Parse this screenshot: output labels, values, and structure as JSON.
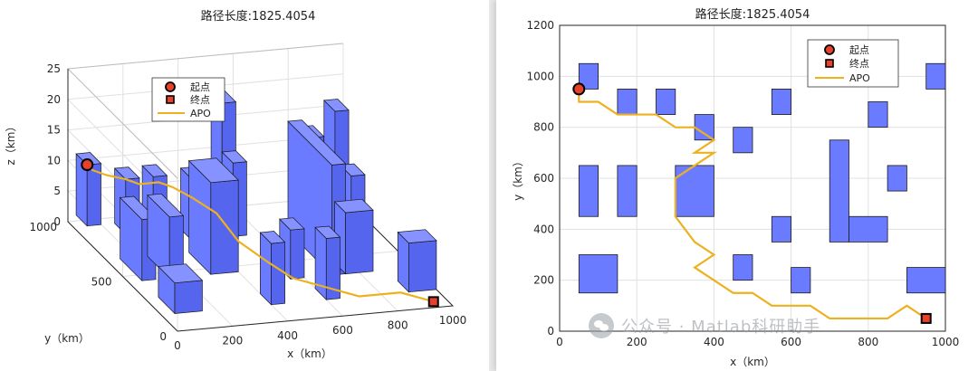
{
  "chart_data": [
    {
      "type": "3d-bar-path",
      "title": "路径长度:1825.4054",
      "xlabel": "x（km）",
      "ylabel": "y（km）",
      "zlabel": "z（km）",
      "xlim": [
        0,
        1000
      ],
      "ylim": [
        0,
        1000
      ],
      "zlim": [
        0,
        25
      ],
      "xticks": [
        "0",
        "200",
        "400",
        "600",
        "800",
        "1000"
      ],
      "yticks": [
        "0",
        "500",
        "1000"
      ],
      "zticks": [
        "0",
        "5",
        "10",
        "15",
        "20",
        "25"
      ],
      "grid": true,
      "legend": {
        "position": "top-left",
        "entries": [
          "起点",
          "终点",
          "APO"
        ]
      },
      "obstacles": [
        {
          "x0": 50,
          "x1": 100,
          "y0": 950,
          "y1": 1050,
          "h": 10
        },
        {
          "x0": 150,
          "x1": 200,
          "y0": 850,
          "y1": 950,
          "h": 9
        },
        {
          "x0": 250,
          "x1": 300,
          "y0": 850,
          "y1": 950,
          "h": 9
        },
        {
          "x0": 350,
          "x1": 400,
          "y0": 750,
          "y1": 850,
          "h": 10
        },
        {
          "x0": 500,
          "x1": 550,
          "y0": 850,
          "y1": 950,
          "h": 20
        },
        {
          "x0": 500,
          "x1": 550,
          "y0": 750,
          "y1": 850,
          "h": 12
        },
        {
          "x0": 800,
          "x1": 850,
          "y0": 800,
          "y1": 900,
          "h": 14
        },
        {
          "x0": 950,
          "x1": 1000,
          "y0": 950,
          "y1": 1050,
          "h": 15
        },
        {
          "x0": 50,
          "x1": 100,
          "y0": 450,
          "y1": 650,
          "h": 10
        },
        {
          "x0": 150,
          "x1": 200,
          "y0": 450,
          "y1": 650,
          "h": 10
        },
        {
          "x0": 300,
          "x1": 400,
          "y0": 450,
          "y1": 650,
          "h": 15
        },
        {
          "x0": 700,
          "x1": 750,
          "y0": 350,
          "y1": 750,
          "h": 18
        },
        {
          "x0": 850,
          "x1": 900,
          "y0": 550,
          "y1": 650,
          "h": 12
        },
        {
          "x0": 550,
          "x1": 600,
          "y0": 350,
          "y1": 450,
          "h": 8
        },
        {
          "x0": 750,
          "x1": 850,
          "y0": 350,
          "y1": 450,
          "h": 10
        },
        {
          "x0": 50,
          "x1": 150,
          "y0": 150,
          "y1": 300,
          "h": 5
        },
        {
          "x0": 400,
          "x1": 450,
          "y0": 150,
          "y1": 250,
          "h": 10
        },
        {
          "x0": 600,
          "x1": 650,
          "y0": 150,
          "y1": 250,
          "h": 10
        },
        {
          "x0": 900,
          "x1": 1000,
          "y0": 150,
          "y1": 250,
          "h": 8
        }
      ],
      "start": {
        "x": 50,
        "y": 950,
        "z": 10
      },
      "goal": {
        "x": 950,
        "y": 50,
        "z": 0
      },
      "path": [
        {
          "x": 50,
          "y": 950,
          "z": 10
        },
        {
          "x": 50,
          "y": 900,
          "z": 10
        },
        {
          "x": 100,
          "y": 900,
          "z": 9
        },
        {
          "x": 150,
          "y": 850,
          "z": 9
        },
        {
          "x": 200,
          "y": 850,
          "z": 8
        },
        {
          "x": 250,
          "y": 800,
          "z": 9
        },
        {
          "x": 300,
          "y": 800,
          "z": 8
        },
        {
          "x": 350,
          "y": 750,
          "z": 7
        },
        {
          "x": 400,
          "y": 650,
          "z": 6
        },
        {
          "x": 400,
          "y": 450,
          "z": 5
        },
        {
          "x": 450,
          "y": 300,
          "z": 4
        },
        {
          "x": 500,
          "y": 200,
          "z": 3
        },
        {
          "x": 600,
          "y": 150,
          "z": 2
        },
        {
          "x": 700,
          "y": 100,
          "z": 1
        },
        {
          "x": 850,
          "y": 100,
          "z": 1
        },
        {
          "x": 950,
          "y": 50,
          "z": 0
        }
      ]
    },
    {
      "type": "2d-obstacle-path",
      "title": "路径长度:1825.4054",
      "xlabel": "x（km）",
      "ylabel": "y（km）",
      "xlim": [
        0,
        1000
      ],
      "ylim": [
        0,
        1200
      ],
      "xticks": [
        "0",
        "200",
        "400",
        "600",
        "800",
        "1000"
      ],
      "yticks": [
        "0",
        "200",
        "400",
        "600",
        "800",
        "1000",
        "1200"
      ],
      "grid": true,
      "legend": {
        "position": "top-right",
        "entries": [
          "起点",
          "终点",
          "APO"
        ]
      },
      "obstacles": [
        {
          "x0": 50,
          "x1": 100,
          "y0": 950,
          "y1": 1050
        },
        {
          "x0": 150,
          "x1": 200,
          "y0": 850,
          "y1": 950
        },
        {
          "x0": 250,
          "x1": 300,
          "y0": 850,
          "y1": 950
        },
        {
          "x0": 350,
          "x1": 400,
          "y0": 750,
          "y1": 850
        },
        {
          "x0": 450,
          "x1": 500,
          "y0": 700,
          "y1": 800
        },
        {
          "x0": 550,
          "x1": 600,
          "y0": 850,
          "y1": 950
        },
        {
          "x0": 800,
          "x1": 850,
          "y0": 800,
          "y1": 900
        },
        {
          "x0": 950,
          "x1": 1000,
          "y0": 950,
          "y1": 1050
        },
        {
          "x0": 50,
          "x1": 100,
          "y0": 450,
          "y1": 650
        },
        {
          "x0": 150,
          "x1": 200,
          "y0": 450,
          "y1": 650
        },
        {
          "x0": 300,
          "x1": 400,
          "y0": 450,
          "y1": 650
        },
        {
          "x0": 700,
          "x1": 750,
          "y0": 350,
          "y1": 750
        },
        {
          "x0": 850,
          "x1": 900,
          "y0": 550,
          "y1": 650
        },
        {
          "x0": 550,
          "x1": 600,
          "y0": 350,
          "y1": 450
        },
        {
          "x0": 750,
          "x1": 850,
          "y0": 350,
          "y1": 450
        },
        {
          "x0": 50,
          "x1": 150,
          "y0": 150,
          "y1": 300
        },
        {
          "x0": 450,
          "x1": 500,
          "y0": 200,
          "y1": 300
        },
        {
          "x0": 600,
          "x1": 650,
          "y0": 150,
          "y1": 250
        },
        {
          "x0": 900,
          "x1": 1000,
          "y0": 150,
          "y1": 250
        }
      ],
      "start": {
        "x": 50,
        "y": 950
      },
      "goal": {
        "x": 950,
        "y": 50
      },
      "path": [
        {
          "x": 50,
          "y": 950
        },
        {
          "x": 50,
          "y": 900
        },
        {
          "x": 100,
          "y": 900
        },
        {
          "x": 150,
          "y": 850
        },
        {
          "x": 250,
          "y": 850
        },
        {
          "x": 300,
          "y": 800
        },
        {
          "x": 350,
          "y": 800
        },
        {
          "x": 400,
          "y": 750
        },
        {
          "x": 350,
          "y": 700
        },
        {
          "x": 400,
          "y": 700
        },
        {
          "x": 350,
          "y": 650
        },
        {
          "x": 300,
          "y": 600
        },
        {
          "x": 300,
          "y": 450
        },
        {
          "x": 350,
          "y": 350
        },
        {
          "x": 400,
          "y": 300
        },
        {
          "x": 350,
          "y": 250
        },
        {
          "x": 400,
          "y": 200
        },
        {
          "x": 450,
          "y": 150
        },
        {
          "x": 500,
          "y": 150
        },
        {
          "x": 550,
          "y": 100
        },
        {
          "x": 600,
          "y": 100
        },
        {
          "x": 650,
          "y": 100
        },
        {
          "x": 700,
          "y": 50
        },
        {
          "x": 800,
          "y": 50
        },
        {
          "x": 850,
          "y": 50
        },
        {
          "x": 900,
          "y": 100
        },
        {
          "x": 950,
          "y": 50
        }
      ]
    }
  ],
  "colors": {
    "obstacle": "#6B7BFF",
    "obstacle_top": "#8592FF",
    "obstacle_side": "#5565EE",
    "path": "#EDB120",
    "start": "#E8402A",
    "goal": "#E8402A",
    "grid": "#e0e0e0"
  },
  "watermark": {
    "text": "公众号 · Matlab科研助手"
  }
}
